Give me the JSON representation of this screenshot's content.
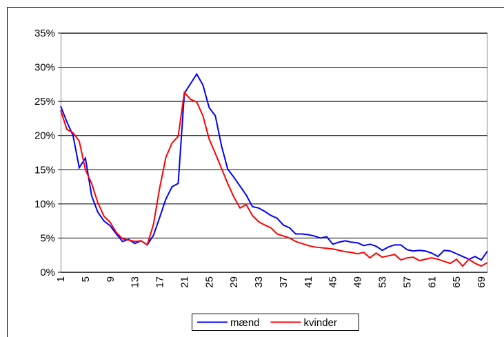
{
  "chart_data": {
    "type": "line",
    "categories": [
      1,
      null,
      null,
      null,
      5,
      null,
      null,
      null,
      9,
      null,
      null,
      null,
      13,
      null,
      null,
      null,
      17,
      null,
      null,
      null,
      21,
      null,
      null,
      null,
      25,
      null,
      null,
      null,
      29,
      null,
      null,
      null,
      33,
      null,
      null,
      null,
      37,
      null,
      null,
      null,
      41,
      null,
      null,
      null,
      45,
      null,
      null,
      null,
      49,
      null,
      null,
      null,
      53,
      null,
      null,
      null,
      57,
      null,
      null,
      null,
      61,
      null,
      null,
      null,
      65,
      null,
      null,
      null,
      69,
      null
    ],
    "series": [
      {
        "name": "mænd",
        "color": "#0000ff",
        "values": [
          24.3,
          22,
          20,
          15.3,
          16.7,
          11.2,
          8.8,
          7.5,
          6.8,
          5.6,
          4.5,
          4.8,
          4.2,
          4.6,
          4.0,
          5.4,
          8.0,
          10.7,
          12.5,
          13.0,
          26.2,
          27.6,
          29.0,
          27.4,
          24.1,
          22.9,
          18.5,
          15.1,
          13.9,
          12.6,
          11.3,
          9.6,
          9.4,
          8.9,
          8.3,
          7.9,
          6.9,
          6.5,
          5.6,
          5.6,
          5.5,
          5.3,
          5.0,
          5.2,
          4.1,
          4.4,
          4.6,
          4.4,
          4.3,
          3.9,
          4.1,
          3.8,
          3.2,
          3.7,
          4.0,
          4.0,
          3.3,
          3.1,
          3.2,
          3.1,
          2.8,
          2.3,
          3.2,
          3.1,
          2.7,
          2.3,
          1.9,
          2.3,
          1.8,
          3.1
        ]
      },
      {
        "name": "kvinder",
        "color": "#ff0000",
        "values": [
          23.7,
          20.9,
          20.4,
          19.2,
          15.0,
          13.0,
          10.2,
          8.2,
          7.3,
          5.8,
          4.9,
          4.7,
          4.5,
          4.6,
          4.0,
          7.0,
          12.3,
          16.8,
          18.9,
          19.9,
          26.3,
          25.3,
          24.9,
          22.9,
          19.5,
          17.4,
          15.2,
          13.0,
          11.0,
          9.4,
          9.9,
          8.3,
          7.4,
          6.9,
          6.5,
          5.6,
          5.3,
          5.0,
          4.5,
          4.2,
          3.9,
          3.7,
          3.6,
          3.5,
          3.4,
          3.2,
          3.0,
          2.9,
          2.7,
          2.9,
          2.1,
          2.8,
          2.2,
          2.4,
          2.6,
          1.8,
          2.1,
          2.2,
          1.7,
          1.9,
          2.1,
          1.9,
          1.6,
          1.3,
          1.9,
          0.9,
          1.9,
          1.3,
          0.9,
          1.4
        ]
      }
    ],
    "ylim": [
      0,
      35
    ],
    "yticks": [
      {
        "value": 0,
        "label": "0%"
      },
      {
        "value": 5,
        "label": "5%"
      },
      {
        "value": 10,
        "label": "10%"
      },
      {
        "value": 15,
        "label": "15%"
      },
      {
        "value": 20,
        "label": "20%"
      },
      {
        "value": 25,
        "label": "25%"
      },
      {
        "value": 30,
        "label": "30%"
      },
      {
        "value": 35,
        "label": "35%"
      }
    ],
    "grid": true,
    "legend": "bottom"
  }
}
